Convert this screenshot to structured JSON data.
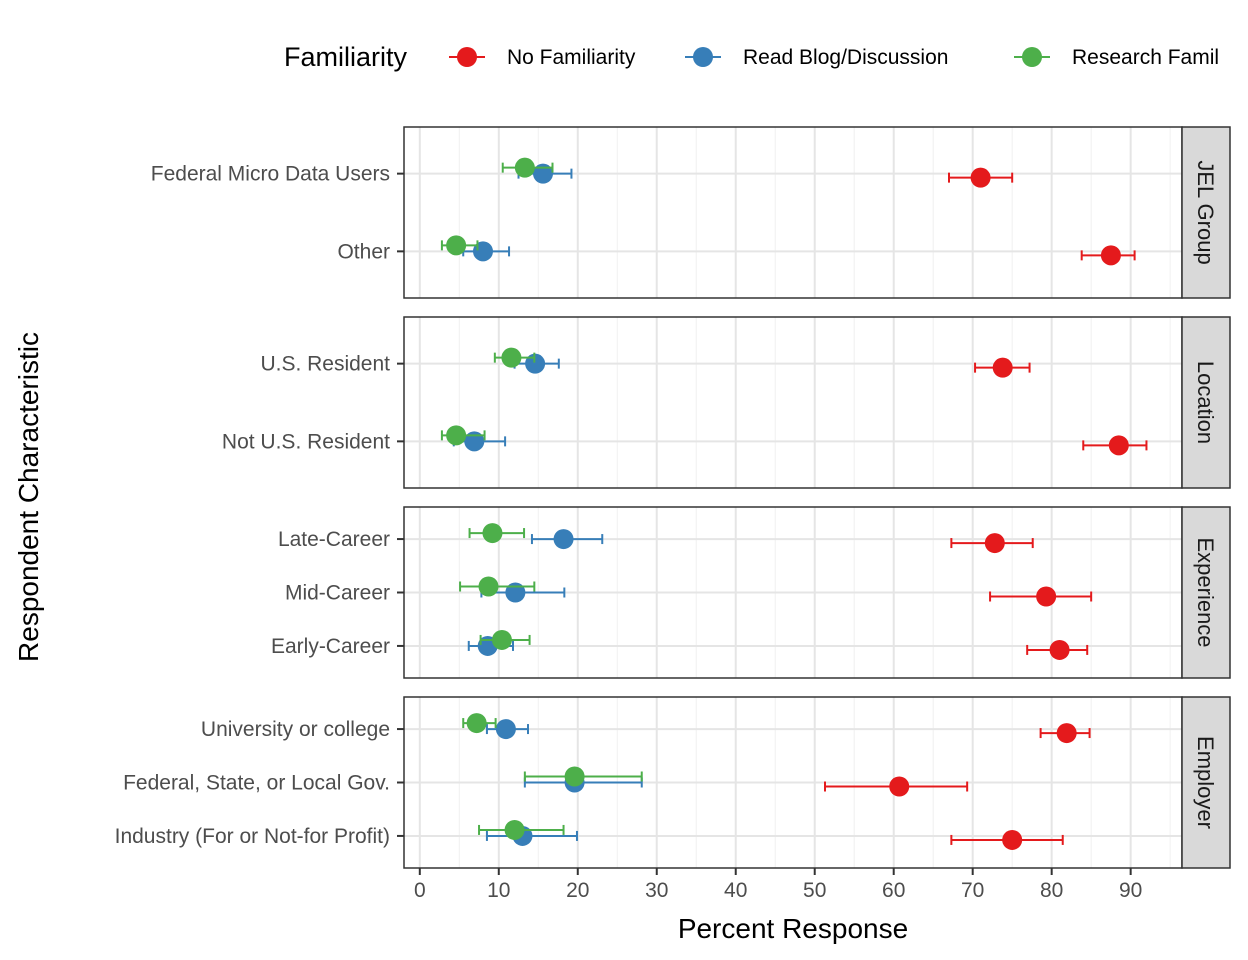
{
  "chart_data": {
    "type": "dot-errorbar",
    "xlabel": "Percent Response",
    "ylabel": "Respondent Characteristic",
    "xlim": [
      -2,
      96.5
    ],
    "x_ticks": [
      0,
      10,
      20,
      30,
      40,
      50,
      60,
      70,
      80,
      90
    ],
    "grid": true,
    "legend": {
      "title": "Familiarity",
      "position": "top",
      "entries": [
        "No Familiarity",
        "Read Blog/Discussion",
        "Research Famil"
      ]
    },
    "colors": {
      "No Familiarity": "#E41A1C",
      "Read Blog/Discussion": "#377EB8",
      "Research Familiarity": "#4DAF4A"
    },
    "panels": [
      {
        "strip": "JEL Group",
        "rows": [
          {
            "label": "Federal Micro Data Users",
            "points": [
              {
                "series": "No Familiarity",
                "value": 71.0,
                "low": 67.0,
                "high": 75.0
              },
              {
                "series": "Read Blog/Discussion",
                "value": 15.6,
                "low": 12.5,
                "high": 19.2
              },
              {
                "series": "Research Familiarity",
                "value": 13.3,
                "low": 10.5,
                "high": 16.8
              }
            ]
          },
          {
            "label": "Other",
            "points": [
              {
                "series": "No Familiarity",
                "value": 87.5,
                "low": 83.8,
                "high": 90.5
              },
              {
                "series": "Read Blog/Discussion",
                "value": 8.0,
                "low": 5.5,
                "high": 11.3
              },
              {
                "series": "Research Familiarity",
                "value": 4.6,
                "low": 2.8,
                "high": 7.3
              }
            ]
          }
        ]
      },
      {
        "strip": "Location",
        "rows": [
          {
            "label": "U.S. Resident",
            "points": [
              {
                "series": "No Familiarity",
                "value": 73.8,
                "low": 70.3,
                "high": 77.2
              },
              {
                "series": "Read Blog/Discussion",
                "value": 14.6,
                "low": 12.0,
                "high": 17.6
              },
              {
                "series": "Research Familiarity",
                "value": 11.6,
                "low": 9.5,
                "high": 14.5
              }
            ]
          },
          {
            "label": "Not U.S. Resident",
            "points": [
              {
                "series": "No Familiarity",
                "value": 88.5,
                "low": 84.0,
                "high": 92.0
              },
              {
                "series": "Read Blog/Discussion",
                "value": 6.9,
                "low": 4.3,
                "high": 10.8
              },
              {
                "series": "Research Familiarity",
                "value": 4.6,
                "low": 2.8,
                "high": 8.2
              }
            ]
          }
        ]
      },
      {
        "strip": "Experience",
        "rows": [
          {
            "label": "Late-Career",
            "points": [
              {
                "series": "No Familiarity",
                "value": 72.8,
                "low": 67.3,
                "high": 77.6
              },
              {
                "series": "Read Blog/Discussion",
                "value": 18.2,
                "low": 14.2,
                "high": 23.1
              },
              {
                "series": "Research Familiarity",
                "value": 9.2,
                "low": 6.3,
                "high": 13.2
              }
            ]
          },
          {
            "label": "Mid-Career",
            "points": [
              {
                "series": "No Familiarity",
                "value": 79.3,
                "low": 72.2,
                "high": 85.0
              },
              {
                "series": "Read Blog/Discussion",
                "value": 12.1,
                "low": 7.8,
                "high": 18.3
              },
              {
                "series": "Research Familiarity",
                "value": 8.7,
                "low": 5.1,
                "high": 14.5
              }
            ]
          },
          {
            "label": "Early-Career",
            "points": [
              {
                "series": "No Familiarity",
                "value": 81.0,
                "low": 76.9,
                "high": 84.5
              },
              {
                "series": "Read Blog/Discussion",
                "value": 8.6,
                "low": 6.2,
                "high": 11.8
              },
              {
                "series": "Research Familiarity",
                "value": 10.4,
                "low": 7.7,
                "high": 13.9
              }
            ]
          }
        ]
      },
      {
        "strip": "Employer",
        "rows": [
          {
            "label": "University or college",
            "points": [
              {
                "series": "No Familiarity",
                "value": 81.9,
                "low": 78.6,
                "high": 84.8
              },
              {
                "series": "Read Blog/Discussion",
                "value": 10.9,
                "low": 8.5,
                "high": 13.7
              },
              {
                "series": "Research Familiarity",
                "value": 7.2,
                "low": 5.5,
                "high": 9.6
              }
            ]
          },
          {
            "label": "Federal, State, or Local Gov.",
            "points": [
              {
                "series": "No Familiarity",
                "value": 60.7,
                "low": 51.3,
                "high": 69.3
              },
              {
                "series": "Read Blog/Discussion",
                "value": 19.6,
                "low": 13.3,
                "high": 28.1
              },
              {
                "series": "Research Familiarity",
                "value": 19.6,
                "low": 13.3,
                "high": 28.1
              }
            ]
          },
          {
            "label": "Industry (For or Not-for Profit)",
            "points": [
              {
                "series": "No Familiarity",
                "value": 75.0,
                "low": 67.3,
                "high": 81.4
              },
              {
                "series": "Read Blog/Discussion",
                "value": 13.0,
                "low": 8.5,
                "high": 19.9
              },
              {
                "series": "Research Familiarity",
                "value": 12.0,
                "low": 7.5,
                "high": 18.2
              }
            ]
          }
        ]
      }
    ]
  }
}
